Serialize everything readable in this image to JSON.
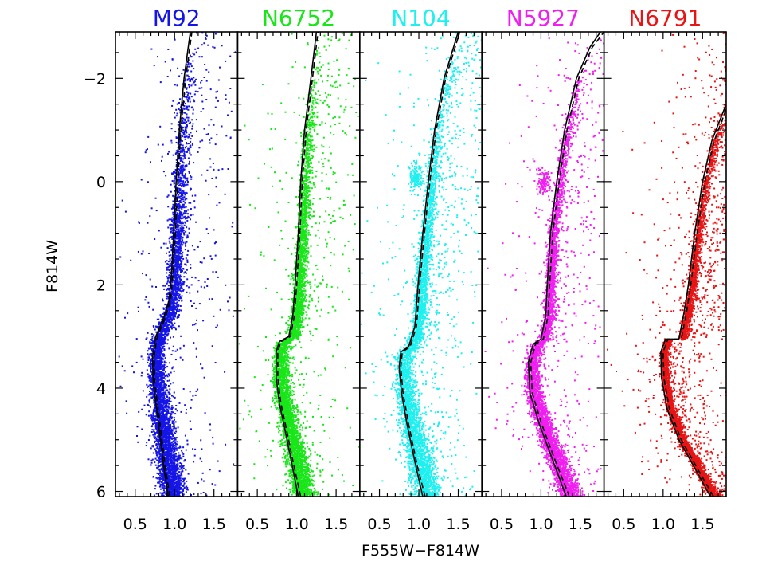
{
  "chart_data": {
    "type": "scatter",
    "xlabel": "F555W−F814W",
    "ylabel": "F814W",
    "xlim": [
      0.25,
      1.8
    ],
    "ylim": [
      6.1,
      -2.9
    ],
    "y_inverted": true,
    "x_ticks": [
      0.5,
      1.0,
      1.5
    ],
    "x_tick_labels": [
      "0.5",
      "1.0",
      "1.5"
    ],
    "y_ticks": [
      -2,
      0,
      2,
      4,
      6
    ],
    "y_tick_labels": [
      "−2",
      "0",
      "2",
      "4",
      "6"
    ],
    "grid": false,
    "legend": "none",
    "panels": [
      {
        "name": "M92",
        "color": "#1414e6",
        "rgb_spread": 0.09,
        "rgb_offset": 0.02,
        "ms_spread": 0.13,
        "field_fraction": 0.1,
        "extra_feature": "none",
        "isochrones": [
          {
            "style": "solid",
            "points": [
              [
                0.92,
                6.1
              ],
              [
                0.86,
                5.5
              ],
              [
                0.78,
                4.5
              ],
              [
                0.73,
                3.9
              ],
              [
                0.72,
                3.4
              ],
              [
                0.76,
                3.0
              ],
              [
                0.86,
                2.65
              ],
              [
                0.93,
                2.3
              ],
              [
                0.96,
                1.8
              ],
              [
                0.99,
                1.0
              ],
              [
                1.02,
                0.0
              ],
              [
                1.06,
                -1.0
              ],
              [
                1.12,
                -2.0
              ],
              [
                1.2,
                -2.9
              ]
            ]
          },
          {
            "style": "dashed",
            "points": [
              [
                0.94,
                6.1
              ],
              [
                0.88,
                5.5
              ],
              [
                0.8,
                4.5
              ],
              [
                0.75,
                3.9
              ],
              [
                0.74,
                3.4
              ],
              [
                0.78,
                3.0
              ],
              [
                0.88,
                2.65
              ],
              [
                0.95,
                2.3
              ],
              [
                0.98,
                1.8
              ],
              [
                1.01,
                1.0
              ],
              [
                1.04,
                0.0
              ],
              [
                1.08,
                -1.0
              ],
              [
                1.14,
                -2.0
              ],
              [
                1.22,
                -2.9
              ]
            ]
          }
        ]
      },
      {
        "name": "N6752",
        "color": "#19e619",
        "rgb_spread": 0.07,
        "rgb_offset": 0.03,
        "ms_spread": 0.12,
        "field_fraction": 0.12,
        "extra_feature": "none",
        "isochrones": [
          {
            "style": "solid",
            "points": [
              [
                1.02,
                6.1
              ],
              [
                0.93,
                5.4
              ],
              [
                0.85,
                4.8
              ],
              [
                0.78,
                4.3
              ],
              [
                0.74,
                3.8
              ],
              [
                0.74,
                3.3
              ],
              [
                0.78,
                3.1
              ],
              [
                0.9,
                3.0
              ],
              [
                0.95,
                2.6
              ],
              [
                0.98,
                2.0
              ],
              [
                1.02,
                1.0
              ],
              [
                1.05,
                0.0
              ],
              [
                1.1,
                -1.0
              ],
              [
                1.18,
                -2.0
              ],
              [
                1.25,
                -2.9
              ]
            ]
          },
          {
            "style": "dashed",
            "points": [
              [
                1.05,
                6.1
              ],
              [
                0.95,
                5.4
              ],
              [
                0.87,
                4.8
              ],
              [
                0.8,
                4.3
              ],
              [
                0.76,
                3.8
              ],
              [
                0.76,
                3.3
              ],
              [
                0.8,
                3.1
              ],
              [
                0.92,
                3.0
              ],
              [
                0.97,
                2.6
              ],
              [
                1.0,
                2.0
              ],
              [
                1.04,
                1.0
              ],
              [
                1.07,
                0.0
              ],
              [
                1.12,
                -1.0
              ],
              [
                1.2,
                -2.0
              ],
              [
                1.27,
                -2.9
              ]
            ]
          }
        ]
      },
      {
        "name": "N104",
        "color": "#1ef0f0",
        "rgb_spread": 0.07,
        "rgb_offset": 0.02,
        "ms_spread": 0.14,
        "field_fraction": 0.18,
        "extra_feature": "red-clump",
        "clump": [
          0.95,
          -0.1
        ],
        "isochrones": [
          {
            "style": "solid",
            "points": [
              [
                1.05,
                6.1
              ],
              [
                0.96,
                5.5
              ],
              [
                0.85,
                4.7
              ],
              [
                0.78,
                4.1
              ],
              [
                0.75,
                3.6
              ],
              [
                0.77,
                3.3
              ],
              [
                0.87,
                3.2
              ],
              [
                0.95,
                2.8
              ],
              [
                0.99,
                2.0
              ],
              [
                1.05,
                1.0
              ],
              [
                1.12,
                0.0
              ],
              [
                1.2,
                -1.0
              ],
              [
                1.32,
                -2.0
              ],
              [
                1.5,
                -2.9
              ]
            ]
          },
          {
            "style": "dashed",
            "points": [
              [
                1.08,
                6.1
              ],
              [
                0.98,
                5.5
              ],
              [
                0.87,
                4.7
              ],
              [
                0.8,
                4.1
              ],
              [
                0.77,
                3.6
              ],
              [
                0.79,
                3.3
              ],
              [
                0.89,
                3.2
              ],
              [
                0.97,
                2.8
              ],
              [
                1.01,
                2.0
              ],
              [
                1.07,
                1.0
              ],
              [
                1.14,
                0.0
              ],
              [
                1.22,
                -1.0
              ],
              [
                1.34,
                -2.0
              ],
              [
                1.52,
                -2.9
              ]
            ]
          }
        ]
      },
      {
        "name": "N5927",
        "color": "#f01ef0",
        "rgb_spread": 0.06,
        "rgb_offset": 0.02,
        "ms_spread": 0.11,
        "field_fraction": 0.12,
        "extra_feature": "red-clump",
        "clump": [
          1.02,
          0.0
        ],
        "isochrones": [
          {
            "style": "solid",
            "points": [
              [
                1.32,
                6.1
              ],
              [
                1.15,
                5.4
              ],
              [
                0.98,
                4.7
              ],
              [
                0.86,
                4.1
              ],
              [
                0.84,
                3.5
              ],
              [
                0.9,
                3.15
              ],
              [
                1.0,
                3.05
              ],
              [
                1.06,
                2.6
              ],
              [
                1.08,
                2.0
              ],
              [
                1.12,
                1.0
              ],
              [
                1.2,
                0.0
              ],
              [
                1.3,
                -1.0
              ],
              [
                1.45,
                -2.0
              ],
              [
                1.62,
                -2.6
              ],
              [
                1.8,
                -3.0
              ]
            ]
          },
          {
            "style": "dashed",
            "points": [
              [
                1.36,
                6.1
              ],
              [
                1.18,
                5.4
              ],
              [
                1.01,
                4.7
              ],
              [
                0.89,
                4.1
              ],
              [
                0.87,
                3.5
              ],
              [
                0.93,
                3.15
              ],
              [
                1.03,
                3.05
              ],
              [
                1.09,
                2.6
              ],
              [
                1.11,
                2.0
              ],
              [
                1.15,
                1.0
              ],
              [
                1.23,
                0.0
              ],
              [
                1.33,
                -1.0
              ],
              [
                1.48,
                -2.0
              ],
              [
                1.65,
                -2.6
              ],
              [
                1.8,
                -2.9
              ]
            ]
          }
        ]
      },
      {
        "name": "N6791",
        "color": "#e61414",
        "rgb_spread": 0.05,
        "rgb_offset": 0.03,
        "ms_spread": 0.06,
        "field_fraction": 0.3,
        "extra_feature": "none",
        "isochrones": [
          {
            "style": "solid",
            "points": [
              [
                1.6,
                6.1
              ],
              [
                1.42,
                5.6
              ],
              [
                1.2,
                5.0
              ],
              [
                1.05,
                4.4
              ],
              [
                0.98,
                3.8
              ],
              [
                0.97,
                3.3
              ],
              [
                1.03,
                3.05
              ],
              [
                1.2,
                3.05
              ],
              [
                1.27,
                2.5
              ],
              [
                1.32,
                2.0
              ],
              [
                1.4,
                1.0
              ],
              [
                1.5,
                0.0
              ],
              [
                1.62,
                -0.8
              ],
              [
                1.8,
                -1.5
              ]
            ]
          },
          {
            "style": "dashed",
            "points": [
              [
                1.64,
                6.1
              ],
              [
                1.45,
                5.6
              ],
              [
                1.23,
                5.0
              ],
              [
                1.08,
                4.4
              ],
              [
                1.01,
                3.8
              ],
              [
                1.0,
                3.3
              ],
              [
                1.06,
                3.05
              ],
              [
                1.23,
                3.05
              ],
              [
                1.3,
                2.5
              ],
              [
                1.35,
                2.0
              ],
              [
                1.43,
                1.0
              ],
              [
                1.53,
                0.0
              ],
              [
                1.65,
                -0.8
              ],
              [
                1.8,
                -1.4
              ]
            ]
          }
        ]
      }
    ]
  }
}
